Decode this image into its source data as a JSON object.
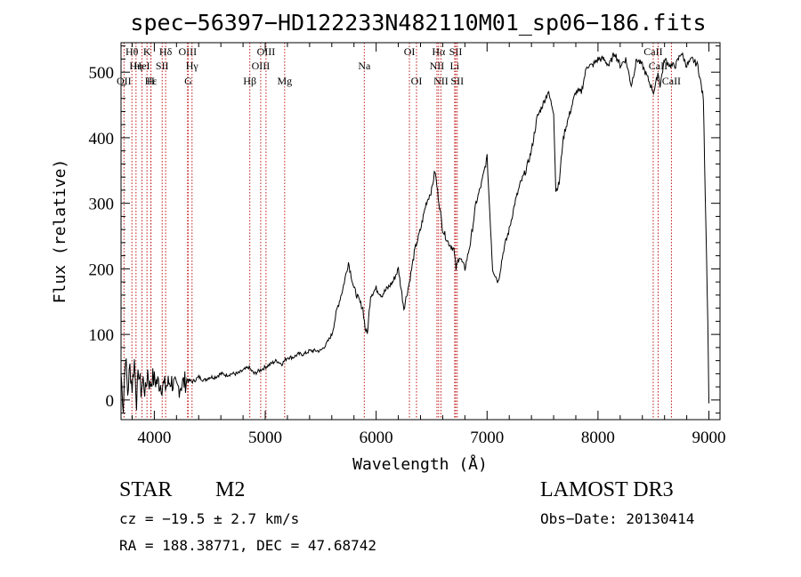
{
  "chart_data": {
    "type": "line",
    "title": "spec−56397−HD122233N482110M01_sp06−186.fits",
    "xlabel": "Wavelength (Å)",
    "ylabel": "Flux (relative)",
    "xlim": [
      3700,
      9100
    ],
    "ylim": [
      -30,
      545
    ],
    "xticks": [
      4000,
      5000,
      6000,
      7000,
      8000,
      9000
    ],
    "yticks": [
      0,
      100,
      200,
      300,
      400,
      500
    ],
    "series": [
      {
        "name": "spectrum",
        "x": [
          3700,
          3720,
          3740,
          3760,
          3780,
          3800,
          3820,
          3840,
          3860,
          3880,
          3900,
          3920,
          3940,
          3960,
          3980,
          4000,
          4050,
          4100,
          4150,
          4200,
          4250,
          4300,
          4350,
          4400,
          4450,
          4500,
          4550,
          4600,
          4650,
          4700,
          4750,
          4800,
          4850,
          4900,
          4950,
          5000,
          5050,
          5100,
          5150,
          5200,
          5250,
          5300,
          5350,
          5400,
          5450,
          5500,
          5550,
          5600,
          5650,
          5700,
          5750,
          5800,
          5850,
          5880,
          5900,
          5920,
          5950,
          6000,
          6050,
          6100,
          6150,
          6200,
          6250,
          6300,
          6350,
          6400,
          6450,
          6500,
          6530,
          6560,
          6600,
          6650,
          6700,
          6720,
          6750,
          6800,
          6850,
          6900,
          6950,
          7000,
          7050,
          7100,
          7150,
          7200,
          7250,
          7300,
          7350,
          7400,
          7450,
          7500,
          7550,
          7600,
          7620,
          7650,
          7680,
          7700,
          7750,
          7800,
          7850,
          7900,
          7950,
          8000,
          8050,
          8100,
          8150,
          8200,
          8250,
          8300,
          8350,
          8400,
          8450,
          8500,
          8520,
          8540,
          8560,
          8600,
          8650,
          8700,
          8750,
          8800,
          8850,
          8900,
          8950,
          8990,
          9000
        ],
        "values": [
          40,
          -10,
          70,
          10,
          50,
          20,
          60,
          0,
          45,
          15,
          30,
          10,
          45,
          20,
          35,
          30,
          25,
          20,
          30,
          15,
          25,
          30,
          28,
          35,
          30,
          35,
          35,
          40,
          38,
          40,
          40,
          45,
          50,
          40,
          45,
          50,
          55,
          60,
          55,
          65,
          65,
          70,
          70,
          75,
          75,
          75,
          85,
          100,
          140,
          170,
          210,
          170,
          150,
          140,
          110,
          100,
          160,
          170,
          160,
          170,
          180,
          200,
          140,
          180,
          230,
          260,
          300,
          320,
          350,
          310,
          260,
          240,
          230,
          200,
          220,
          200,
          240,
          300,
          330,
          370,
          200,
          180,
          230,
          260,
          300,
          330,
          350,
          380,
          430,
          450,
          470,
          440,
          320,
          330,
          390,
          410,
          440,
          470,
          470,
          510,
          510,
          520,
          520,
          510,
          530,
          510,
          520,
          480,
          520,
          510,
          490,
          470,
          480,
          500,
          480,
          520,
          510,
          510,
          530,
          510,
          520,
          510,
          460,
          120,
          -5
        ]
      }
    ],
    "lines": [
      {
        "name": "Hθ",
        "wl": 3798,
        "row": 1
      },
      {
        "name": "OII",
        "wl": 3727,
        "row": 3
      },
      {
        "name": "Hη",
        "wl": 3835,
        "row": 2
      },
      {
        "name": "HeI",
        "wl": 3889,
        "row": 2
      },
      {
        "name": "K",
        "wl": 3934,
        "row": 1
      },
      {
        "name": "Hε",
        "wl": 3970,
        "row": 3
      },
      {
        "name": "H",
        "wl": 3968,
        "row": 3
      },
      {
        "name": "SII",
        "wl": 4071,
        "row": 2
      },
      {
        "name": "Hδ",
        "wl": 4102,
        "row": 1
      },
      {
        "name": "OIII",
        "wl": 4300,
        "row": 1
      },
      {
        "name": "G",
        "wl": 4305,
        "row": 3
      },
      {
        "name": "Hγ",
        "wl": 4340,
        "row": 2
      },
      {
        "name": "Hβ",
        "wl": 4861,
        "row": 3
      },
      {
        "name": "OIII",
        "wl": 4959,
        "row": 2
      },
      {
        "name": "OIII",
        "wl": 5007,
        "row": 1
      },
      {
        "name": "Mg",
        "wl": 5175,
        "row": 3
      },
      {
        "name": "Na",
        "wl": 5893,
        "row": 2
      },
      {
        "name": "OI",
        "wl": 6300,
        "row": 1
      },
      {
        "name": "OI",
        "wl": 6364,
        "row": 3
      },
      {
        "name": "Hα",
        "wl": 6563,
        "row": 1
      },
      {
        "name": "NII",
        "wl": 6548,
        "row": 2
      },
      {
        "name": "NII",
        "wl": 6584,
        "row": 3
      },
      {
        "name": "SII",
        "wl": 6717,
        "row": 1
      },
      {
        "name": "Li",
        "wl": 6708,
        "row": 2
      },
      {
        "name": "SII",
        "wl": 6731,
        "row": 3
      },
      {
        "name": "CaII",
        "wl": 8498,
        "row": 1
      },
      {
        "name": "CaII",
        "wl": 8542,
        "row": 2
      },
      {
        "name": "CaII",
        "wl": 8662,
        "row": 3
      }
    ],
    "line_color": "#c01818"
  },
  "info": {
    "class_label": "STAR",
    "subclass": "M2",
    "survey": "LAMOST DR3",
    "cz": "cz = −19.5 ± 2.7 km/s",
    "obs_date": "Obs−Date: 20130414",
    "coords": "RA = 188.38771, DEC =  47.68742"
  }
}
